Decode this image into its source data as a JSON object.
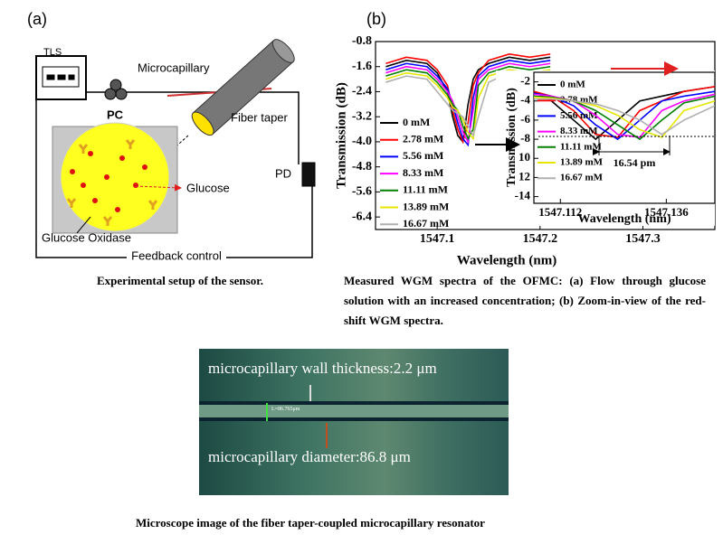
{
  "panel_a": {
    "label": "(a)",
    "tls": "TLS",
    "pc": "PC",
    "microcapillary": "Microcapillary",
    "fiber_taper": "Fiber taper",
    "glucose": "Glucose",
    "glucose_oxidase": "Glucose Oxidase",
    "pd": "PD",
    "feedback": "Feedback control",
    "caption": "Experimental setup of the sensor."
  },
  "panel_b": {
    "label": "(b)",
    "caption": "Measured WGM spectra of the OFMC: (a) Flow through glucose solution with an increased concentration; (b) Zoom-in-view of the red-shift WGM spectra."
  },
  "chart_data": [
    {
      "type": "line",
      "x_label": "Wavelength (nm)",
      "y_label": "Transmission (dB)",
      "x": [
        1547.05,
        1547.07,
        1547.09,
        1547.1,
        1547.11,
        1547.115,
        1547.12,
        1547.125,
        1547.13,
        1547.135,
        1547.14,
        1547.15,
        1547.17,
        1547.19,
        1547.21
      ],
      "xlim": [
        1547.04,
        1547.37
      ],
      "xticks": [
        1547.1,
        1547.2,
        1547.3
      ],
      "ylim": [
        -6.8,
        -0.8
      ],
      "yticks": [
        -0.8,
        -1.6,
        -2.4,
        -3.2,
        {
          "value": -4,
          "label": "-4.0"
        },
        -4.8,
        -5.6,
        -6.4
      ],
      "series": [
        {
          "name": "0 mM",
          "color": "#000000",
          "values": [
            -1.6,
            -1.4,
            -1.5,
            -1.8,
            -2.4,
            -3.2,
            -3.8,
            -4.0,
            -2.8,
            -2.0,
            -1.7,
            -1.5,
            -1.3,
            -1.4,
            -1.3
          ]
        },
        {
          "name": "2.78 mM",
          "color": "#ff0000",
          "values": [
            -1.5,
            -1.3,
            -1.4,
            -1.7,
            -2.2,
            -3.0,
            -3.6,
            -4.0,
            -3.4,
            -2.2,
            -1.8,
            -1.4,
            -1.2,
            -1.3,
            -1.2
          ]
        },
        {
          "name": "5.56 mM",
          "color": "#0000ff",
          "values": [
            -1.7,
            -1.5,
            -1.6,
            -1.9,
            -2.3,
            -2.8,
            -3.4,
            -3.9,
            -4.1,
            -2.6,
            -1.9,
            -1.6,
            -1.4,
            -1.5,
            -1.4
          ]
        },
        {
          "name": "8.33 mM",
          "color": "#ff00ff",
          "values": [
            -1.8,
            -1.6,
            -1.7,
            -2.0,
            -2.4,
            -2.7,
            -3.2,
            -3.7,
            -4.0,
            -3.0,
            -2.0,
            -1.7,
            -1.5,
            -1.6,
            -1.5
          ]
        },
        {
          "name": "11.11 mM",
          "color": "#008000",
          "values": [
            -1.9,
            -1.7,
            -1.8,
            -2.1,
            -2.5,
            -2.8,
            -3.0,
            -3.5,
            -3.9,
            -3.6,
            -2.2,
            -1.8,
            -1.6,
            -1.7,
            -1.6
          ]
        },
        {
          "name": "13.89 mM",
          "color": "#e6e600",
          "values": [
            -2.0,
            -1.8,
            -1.9,
            -2.2,
            -2.6,
            -2.9,
            -3.0,
            -3.3,
            -3.7,
            -3.9,
            -2.6,
            -1.9,
            -1.7,
            -1.8,
            -1.7
          ]
        },
        {
          "name": "16.67 mM",
          "color": "#b0b0b0",
          "values": [
            -2.1,
            -1.9,
            -2.0,
            -2.4,
            -2.8,
            -3.0,
            -3.1,
            -3.2,
            -3.5,
            -3.8,
            -3.2,
            -2.1,
            -1.8,
            -1.9,
            -1.8
          ]
        }
      ]
    },
    {
      "type": "line",
      "x_label": "Wavelength (nm)",
      "y_label": "Transmission (dB)",
      "annotation": "16.54 pm",
      "x": [
        1547.106,
        1547.11,
        1547.115,
        1547.12,
        1547.125,
        1547.13,
        1547.135,
        1547.14,
        1547.147
      ],
      "xlim": [
        1547.106,
        1547.147
      ],
      "xticks": [
        1547.112,
        1547.136
      ],
      "ylim": [
        -14.7,
        -1
      ],
      "yticks": [
        -2,
        -4,
        -6,
        -8,
        {
          "value": -10,
          "label": "10"
        },
        {
          "value": -12,
          "label": "12"
        },
        -14
      ],
      "series": [
        {
          "name": "0 mM",
          "color": "#000000",
          "values": [
            -3,
            -4,
            -6,
            -8,
            -6,
            -4,
            -3.5,
            -3,
            -2.5
          ]
        },
        {
          "name": "2.78 mM",
          "color": "#ff0000",
          "values": [
            -3,
            -3.5,
            -5,
            -7.5,
            -7.8,
            -5,
            -4,
            -3,
            -2.5
          ]
        },
        {
          "name": "5.56 mM",
          "color": "#0000ff",
          "values": [
            -3.2,
            -3.5,
            -4.5,
            -6.5,
            -8,
            -6,
            -4,
            -3.5,
            -3
          ]
        },
        {
          "name": "8.33 mM",
          "color": "#ff00ff",
          "values": [
            -3.3,
            -3.5,
            -4,
            -5.5,
            -7.5,
            -7.8,
            -5,
            -4,
            -3.3
          ]
        },
        {
          "name": "11.11 mM",
          "color": "#008000",
          "values": [
            -3.5,
            -3.6,
            -4,
            -5,
            -6.5,
            -8,
            -6,
            -4.2,
            -3.5
          ]
        },
        {
          "name": "13.89 mM",
          "color": "#e6e600",
          "values": [
            -3.6,
            -3.7,
            -4,
            -4.5,
            -5.5,
            -7,
            -7.8,
            -5,
            -4
          ]
        },
        {
          "name": "16.67 mM",
          "color": "#b0b0b0",
          "values": [
            -3.8,
            -3.8,
            -4,
            -4.3,
            -5,
            -6,
            -7.5,
            -6,
            -4.5
          ]
        }
      ]
    }
  ],
  "photo": {
    "wall": "microcapillary wall thickness:2.2 μm",
    "diameter": "microcapillary diameter:86.8 μm",
    "scale": "L=86.765μm",
    "caption": "Microscope image of the fiber taper-coupled microcapillary resonator"
  }
}
